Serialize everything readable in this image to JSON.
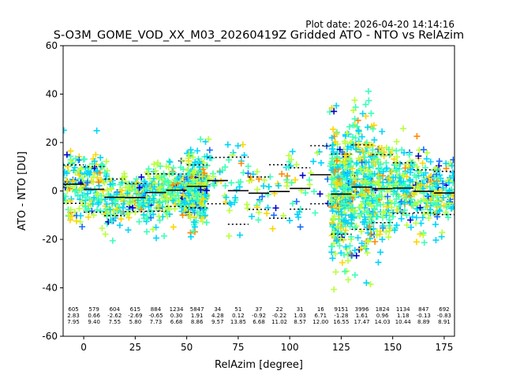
{
  "plot_date": "Plot date: 2026-04-20 14:14:16",
  "chart_data": {
    "type": "scatter",
    "title": "S-O3M_GOME_VOD_XX_M03_20260419Z Gridded ATO - NTO vs RelAzim",
    "xlabel": "RelAzim [degree]",
    "ylabel": "ATO - NTO [DU]",
    "xlim": [
      -10,
      180
    ],
    "ylim": [
      -60,
      60
    ],
    "x_ticks": [
      0,
      25,
      50,
      75,
      100,
      125,
      150,
      175
    ],
    "y_ticks": [
      -60,
      -40,
      -20,
      0,
      20,
      40,
      60
    ],
    "grid": false,
    "legend": "none",
    "marker": "plus",
    "colormap": [
      "#0000cc",
      "#1a6cff",
      "#00d5ff",
      "#3dffb8",
      "#b8ff3d",
      "#ffd500",
      "#ff8a00"
    ],
    "bins": [
      {
        "x_start": -10,
        "x_end": 0,
        "count": "605",
        "mean": "2.83",
        "std": "7.95"
      },
      {
        "x_start": 0,
        "x_end": 10,
        "count": "579",
        "mean": "0.66",
        "std": "9.40"
      },
      {
        "x_start": 10,
        "x_end": 20,
        "count": "604",
        "mean": "-2.62",
        "std": "7.55"
      },
      {
        "x_start": 20,
        "x_end": 30,
        "count": "615",
        "mean": "-2.69",
        "std": "5.80"
      },
      {
        "x_start": 30,
        "x_end": 40,
        "count": "884",
        "mean": "-0.65",
        "std": "7.73"
      },
      {
        "x_start": 40,
        "x_end": 50,
        "count": "1234",
        "mean": "0.30",
        "std": "6.68"
      },
      {
        "x_start": 50,
        "x_end": 60,
        "count": "5847",
        "mean": "1.91",
        "std": "8.86"
      },
      {
        "x_start": 60,
        "x_end": 70,
        "count": "34",
        "mean": "4.28",
        "std": "9.57"
      },
      {
        "x_start": 70,
        "x_end": 80,
        "count": "51",
        "mean": "0.12",
        "std": "13.85"
      },
      {
        "x_start": 80,
        "x_end": 90,
        "count": "37",
        "mean": "-0.92",
        "std": "6.68"
      },
      {
        "x_start": 90,
        "x_end": 100,
        "count": "22",
        "mean": "-0.22",
        "std": "11.02"
      },
      {
        "x_start": 100,
        "x_end": 110,
        "count": "31",
        "mean": "1.03",
        "std": "8.57"
      },
      {
        "x_start": 110,
        "x_end": 120,
        "count": "16",
        "mean": "6.71",
        "std": "12.00"
      },
      {
        "x_start": 120,
        "x_end": 130,
        "count": "9151",
        "mean": "-1.28",
        "std": "16.55"
      },
      {
        "x_start": 130,
        "x_end": 140,
        "count": "3996",
        "mean": "1.61",
        "std": "17.47"
      },
      {
        "x_start": 140,
        "x_end": 150,
        "count": "1824",
        "mean": "0.96",
        "std": "14.03"
      },
      {
        "x_start": 150,
        "x_end": 160,
        "count": "1134",
        "mean": "1.18",
        "std": "10.44"
      },
      {
        "x_start": 160,
        "x_end": 170,
        "count": "847",
        "mean": "-0.13",
        "std": "8.89"
      },
      {
        "x_start": 170,
        "x_end": 180,
        "count": "692",
        "mean": "-0.83",
        "std": "8.91"
      }
    ]
  }
}
